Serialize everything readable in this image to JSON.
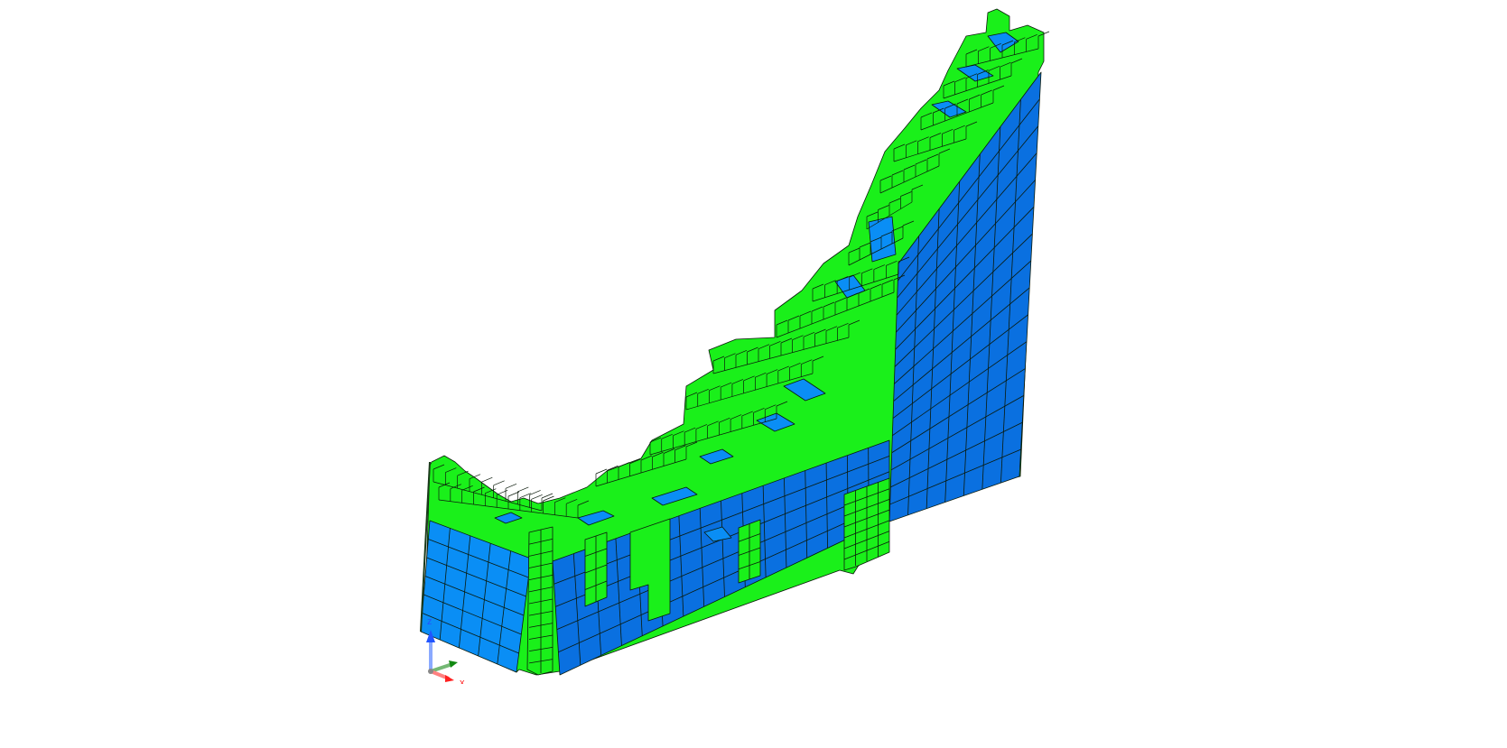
{
  "viewport": {
    "background": "#ffffff",
    "colors": {
      "blue_face_light": "#0a8ef5",
      "blue_face_dark": "#0a70e0",
      "green_face": "#1af01a",
      "green_face_dark": "#12c812",
      "edge": "#0b1a0b"
    }
  },
  "triad": {
    "labels": {
      "z": "z",
      "x": "x",
      "y": "y"
    },
    "colors": {
      "z": "#2255ff",
      "x": "#ff2020",
      "y": "#118811"
    }
  }
}
